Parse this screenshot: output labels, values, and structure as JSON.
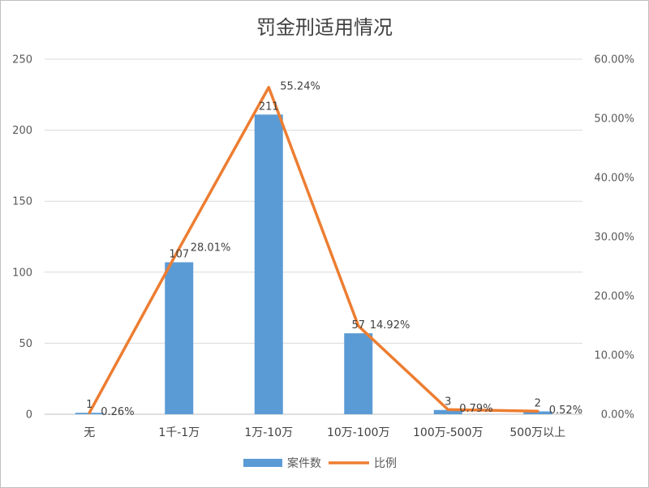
{
  "chart_data": {
    "type": "bar",
    "title": "罚金刑适用情况",
    "categories": [
      "无",
      "1千-1万",
      "1万-10万",
      "10万-100万",
      "100万-500万",
      "500万以上"
    ],
    "series": [
      {
        "name": "案件数",
        "type": "bar",
        "axis": "left",
        "color": "#5b9bd5",
        "values": [
          1,
          107,
          211,
          57,
          3,
          2
        ],
        "labels": [
          "1",
          "107",
          "211",
          "57",
          "3",
          "2"
        ]
      },
      {
        "name": "比例",
        "type": "line",
        "axis": "right",
        "color": "#ed7d31",
        "values": [
          0.26,
          28.01,
          55.24,
          14.92,
          0.79,
          0.52
        ],
        "labels": [
          "0.26%",
          "28.01%",
          "55.24%",
          "14.92%",
          "0.79%",
          "0.52%"
        ]
      }
    ],
    "y_left": {
      "min": 0,
      "max": 250,
      "ticks": [
        "0",
        "50",
        "100",
        "150",
        "200",
        "250"
      ]
    },
    "y_right": {
      "min": 0,
      "max": 60,
      "ticks": [
        "0.00%",
        "10.00%",
        "20.00%",
        "30.00%",
        "40.00%",
        "50.00%",
        "60.00%"
      ]
    },
    "grid": true,
    "legend_position": "bottom"
  }
}
